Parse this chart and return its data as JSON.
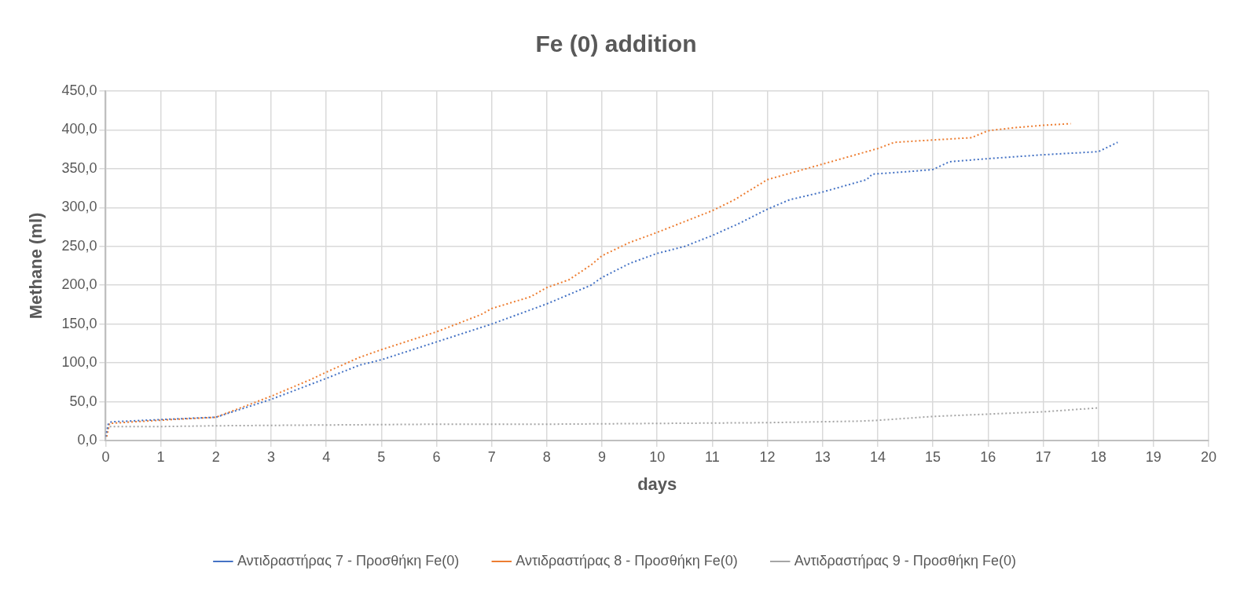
{
  "chart_data": {
    "type": "line",
    "title": "Fe (0) addition",
    "xlabel": "days",
    "ylabel": "Methane (ml)",
    "xlim": [
      0,
      20
    ],
    "xticks": [
      0,
      1,
      2,
      3,
      4,
      5,
      6,
      7,
      8,
      9,
      10,
      11,
      12,
      13,
      14,
      15,
      16,
      17,
      18,
      19,
      20
    ],
    "ylim": [
      0,
      450
    ],
    "yticks": [
      {
        "value": 0,
        "label": "0,0"
      },
      {
        "value": 50,
        "label": "50,0"
      },
      {
        "value": 100,
        "label": "100,0"
      },
      {
        "value": 150,
        "label": "150,0"
      },
      {
        "value": 200,
        "label": "200,0"
      },
      {
        "value": 250,
        "label": "250,0"
      },
      {
        "value": 300,
        "label": "300,0"
      },
      {
        "value": 350,
        "label": "350,0"
      },
      {
        "value": 400,
        "label": "400,0"
      },
      {
        "value": 450,
        "label": "450,0"
      }
    ],
    "grid": true,
    "legend": "bottom",
    "marker": "none",
    "line_style": "dotted",
    "series": [
      {
        "name": "Αντιδραστήρας 7 - Προσθήκη Fe(0)",
        "color": "#4472c4",
        "x": [
          0,
          0.05,
          0.1,
          1,
          2,
          3,
          4,
          4.6,
          5,
          6,
          7,
          8,
          8.8,
          9,
          9.5,
          10,
          10.5,
          11,
          11.5,
          12,
          12.4,
          13,
          13.8,
          13.9,
          14.5,
          15,
          15.3,
          16,
          17,
          18,
          18.35
        ],
        "values": [
          5,
          22,
          24,
          27,
          30,
          53,
          80,
          97,
          104,
          127,
          150,
          176,
          200,
          210,
          228,
          241,
          250,
          264,
          280,
          298,
          310,
          320,
          336,
          343,
          346,
          349,
          359,
          363,
          368,
          372,
          384
        ]
      },
      {
        "name": "Αντιδραστήρας 8 - Προσθήκη Fe(0)",
        "color": "#ed7d31",
        "x": [
          0.02,
          0.07,
          0.5,
          1.2,
          2,
          3,
          3.7,
          4,
          4.6,
          5,
          6,
          6.8,
          7,
          7.7,
          8,
          8.4,
          8.8,
          9,
          9.5,
          10,
          10.5,
          11,
          11.4,
          12,
          12.5,
          13,
          13.5,
          14,
          14.3,
          15,
          15.7,
          16,
          16.5,
          17,
          17.5
        ],
        "values": [
          5,
          22,
          24,
          27,
          30,
          57,
          78,
          88,
          107,
          117,
          140,
          162,
          170,
          185,
          197,
          207,
          226,
          238,
          255,
          268,
          282,
          296,
          310,
          336,
          346,
          356,
          366,
          376,
          384,
          387,
          390,
          399,
          403,
          406,
          408
        ]
      },
      {
        "name": "Αντιδραστήρας 9 - Προσθήκη Fe(0)",
        "color": "#a5a5a5",
        "x": [
          0,
          0.05,
          1,
          2,
          4,
          6,
          8,
          10,
          12,
          13.7,
          14,
          14.8,
          15,
          16,
          17,
          18
        ],
        "values": [
          5,
          18,
          18,
          19,
          20,
          21,
          21,
          22,
          23,
          25,
          26,
          30,
          31,
          34,
          37,
          42
        ]
      }
    ]
  }
}
